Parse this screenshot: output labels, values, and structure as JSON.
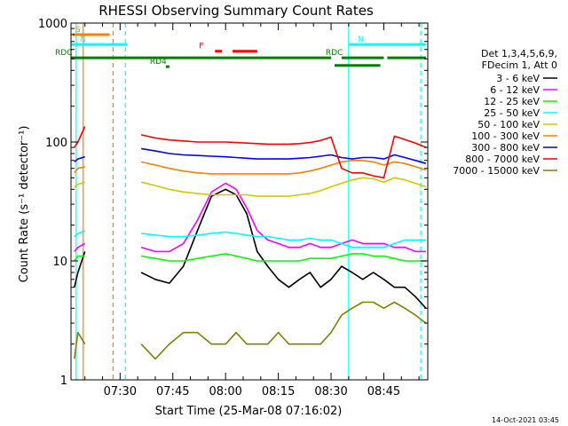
{
  "chart_data": {
    "type": "line",
    "title": "RHESSI Observing Summary Count Rates",
    "xlabel": "Start Time (25-Mar-08 07:16:02)",
    "ylabel": "Count Rate (s⁻¹ detector⁻¹)",
    "y_scale": "log",
    "ylim": [
      1,
      1000
    ],
    "xlim": [
      "07:16:02",
      "08:57:30"
    ],
    "y_ticks": [
      "1",
      "10",
      "100",
      "1000"
    ],
    "x_ticks": [
      "07:30",
      "07:45",
      "08:00",
      "08:15",
      "08:30",
      "08:45"
    ],
    "grid": false,
    "legend_placement": "right",
    "legend_header": [
      "Det 1,3,4,5,6,9,",
      "FDecim 1, Att 0"
    ],
    "footer_date": "14-Oct-2021 03:45",
    "series": [
      {
        "name": "3 - 6 keV",
        "color": "#000000",
        "x": [
          "07:17",
          "07:18",
          "07:20",
          "07:33",
          "07:36",
          "07:40",
          "07:44",
          "07:48",
          "07:52",
          "07:56",
          "08:00",
          "08:03",
          "08:06",
          "08:09",
          "08:12",
          "08:15",
          "08:18",
          "08:21",
          "08:24",
          "08:27",
          "08:30",
          "08:33",
          "08:36",
          "08:39",
          "08:42",
          "08:45",
          "08:48",
          "08:51",
          "08:54",
          "08:57"
        ],
        "values": [
          6,
          8,
          12,
          null,
          8,
          7,
          6.5,
          9,
          18,
          35,
          40,
          36,
          25,
          12,
          9,
          7,
          6,
          7,
          8,
          6,
          7,
          9,
          8,
          7,
          8,
          7,
          6,
          6,
          5,
          4
        ]
      },
      {
        "name": "6 - 12 keV",
        "color": "#ff00ff",
        "x": [
          "07:17",
          "07:18",
          "07:20",
          "07:33",
          "07:36",
          "07:40",
          "07:44",
          "07:48",
          "07:52",
          "07:56",
          "08:00",
          "08:03",
          "08:06",
          "08:09",
          "08:12",
          "08:15",
          "08:18",
          "08:21",
          "08:24",
          "08:27",
          "08:30",
          "08:33",
          "08:36",
          "08:39",
          "08:42",
          "08:45",
          "08:48",
          "08:51",
          "08:54",
          "08:57"
        ],
        "values": [
          12,
          13,
          14,
          null,
          13,
          12,
          12,
          14,
          22,
          38,
          45,
          40,
          28,
          18,
          15,
          14,
          13,
          13,
          14,
          13,
          13,
          14,
          15,
          14,
          14,
          14,
          13,
          13,
          12,
          12
        ]
      },
      {
        "name": "12 - 25 keV",
        "color": "#00ff00",
        "x": [
          "07:17",
          "07:18",
          "07:20",
          "07:33",
          "07:36",
          "07:40",
          "07:44",
          "07:48",
          "07:52",
          "07:56",
          "08:00",
          "08:03",
          "08:06",
          "08:09",
          "08:12",
          "08:15",
          "08:18",
          "08:21",
          "08:24",
          "08:27",
          "08:30",
          "08:33",
          "08:36",
          "08:39",
          "08:42",
          "08:45",
          "08:48",
          "08:51",
          "08:54",
          "08:57"
        ],
        "values": [
          10,
          11,
          11,
          null,
          11,
          10.5,
          10,
          10,
          10.5,
          11,
          11.5,
          11,
          10.5,
          10,
          10,
          10,
          10,
          10,
          10.5,
          10.5,
          10.5,
          11,
          11.5,
          11.5,
          11,
          11,
          10.5,
          10,
          10,
          10
        ]
      },
      {
        "name": "25 - 50 keV",
        "color": "#00ffff",
        "x": [
          "07:17",
          "07:18",
          "07:20",
          "07:33",
          "07:36",
          "07:40",
          "07:44",
          "07:48",
          "07:52",
          "07:56",
          "08:00",
          "08:03",
          "08:06",
          "08:09",
          "08:12",
          "08:15",
          "08:18",
          "08:21",
          "08:24",
          "08:27",
          "08:30",
          "08:33",
          "08:36",
          "08:39",
          "08:42",
          "08:45",
          "08:48",
          "08:51",
          "08:54",
          "08:57"
        ],
        "values": [
          16,
          17,
          18,
          null,
          17,
          16.5,
          16,
          16,
          16.5,
          17,
          17.5,
          17,
          16.5,
          16,
          16,
          15.5,
          15,
          15,
          15.5,
          15,
          15,
          14,
          13,
          13,
          13,
          13,
          14,
          15,
          15,
          15
        ]
      },
      {
        "name": "50 - 100 keV",
        "color": "#d2c800",
        "x": [
          "07:17",
          "07:18",
          "07:20",
          "07:33",
          "07:36",
          "07:40",
          "07:44",
          "07:48",
          "07:52",
          "07:56",
          "08:00",
          "08:03",
          "08:06",
          "08:09",
          "08:12",
          "08:15",
          "08:18",
          "08:21",
          "08:24",
          "08:27",
          "08:30",
          "08:33",
          "08:36",
          "08:39",
          "08:42",
          "08:45",
          "08:48",
          "08:51",
          "08:54",
          "08:57"
        ],
        "values": [
          42,
          44,
          46,
          null,
          46,
          43,
          40,
          38,
          37,
          36,
          36,
          36,
          36,
          35,
          35,
          35,
          35,
          36,
          37,
          39,
          42,
          45,
          48,
          50,
          49,
          46,
          50,
          48,
          45,
          42
        ]
      },
      {
        "name": "100 - 300 keV",
        "color": "#ff8000",
        "x": [
          "07:17",
          "07:18",
          "07:20",
          "07:33",
          "07:36",
          "07:40",
          "07:44",
          "07:48",
          "07:52",
          "07:56",
          "08:00",
          "08:03",
          "08:06",
          "08:09",
          "08:12",
          "08:15",
          "08:18",
          "08:21",
          "08:24",
          "08:27",
          "08:30",
          "08:33",
          "08:36",
          "08:39",
          "08:42",
          "08:45",
          "08:48",
          "08:51",
          "08:54",
          "08:57"
        ],
        "values": [
          55,
          60,
          62,
          null,
          68,
          64,
          60,
          57,
          55,
          54,
          54,
          54,
          54,
          54,
          54,
          54,
          54,
          55,
          57,
          60,
          64,
          68,
          70,
          70,
          68,
          64,
          68,
          66,
          62,
          58
        ]
      },
      {
        "name": "300 - 800 keV",
        "color": "#0000ff",
        "x": [
          "07:17",
          "07:18",
          "07:20",
          "07:33",
          "07:36",
          "07:40",
          "07:44",
          "07:48",
          "07:52",
          "07:56",
          "08:00",
          "08:03",
          "08:06",
          "08:09",
          "08:12",
          "08:15",
          "08:18",
          "08:21",
          "08:24",
          "08:27",
          "08:30",
          "08:33",
          "08:36",
          "08:39",
          "08:42",
          "08:45",
          "08:48",
          "08:51",
          "08:54",
          "08:57"
        ],
        "values": [
          68,
          72,
          75,
          null,
          88,
          84,
          80,
          78,
          77,
          76,
          75,
          74,
          73,
          72,
          72,
          72,
          72,
          73,
          74,
          76,
          78,
          74,
          72,
          74,
          74,
          72,
          78,
          74,
          70,
          66
        ]
      },
      {
        "name": "800 - 7000 keV",
        "color": "#ff0000",
        "x": [
          "07:17",
          "07:18",
          "07:20",
          "07:33",
          "07:36",
          "07:40",
          "07:44",
          "07:48",
          "07:52",
          "07:56",
          "08:00",
          "08:03",
          "08:06",
          "08:09",
          "08:12",
          "08:15",
          "08:18",
          "08:21",
          "08:24",
          "08:27",
          "08:30",
          "08:33",
          "08:36",
          "08:39",
          "08:42",
          "08:45",
          "08:48",
          "08:51",
          "08:54",
          "08:57"
        ],
        "values": [
          90,
          100,
          135,
          null,
          115,
          108,
          104,
          102,
          100,
          100,
          100,
          99,
          98,
          97,
          96,
          96,
          96,
          97,
          99,
          103,
          110,
          60,
          55,
          55,
          52,
          50,
          112,
          105,
          98,
          90
        ]
      },
      {
        "name": "7000 - 15000 keV",
        "color": "#808000",
        "x": [
          "07:17",
          "07:18",
          "07:20",
          "07:33",
          "07:36",
          "07:40",
          "07:44",
          "07:48",
          "07:52",
          "07:56",
          "08:00",
          "08:03",
          "08:06",
          "08:09",
          "08:12",
          "08:15",
          "08:18",
          "08:21",
          "08:24",
          "08:27",
          "08:30",
          "08:33",
          "08:36",
          "08:39",
          "08:42",
          "08:45",
          "08:48",
          "08:51",
          "08:54",
          "08:57"
        ],
        "values": [
          1.5,
          2.5,
          2,
          null,
          2,
          1.5,
          2,
          2.5,
          2.5,
          2,
          2,
          2.5,
          2,
          2,
          2,
          2.5,
          2,
          2,
          2,
          2,
          2.5,
          3.5,
          4,
          4.5,
          4.5,
          4,
          4.5,
          4,
          3.5,
          3
        ]
      }
    ],
    "flags": [
      {
        "label": "S",
        "color": "#ff8000",
        "from": "07:16:30",
        "to": "07:27:00",
        "level": 800
      },
      {
        "label": "N",
        "color": "#00ffff",
        "from": "07:16:02",
        "to": "07:32:00",
        "level": 660
      },
      {
        "label": "N",
        "color": "#00ffff",
        "from": "08:35:00",
        "to": "08:57:00",
        "level": 660
      },
      {
        "label": "F",
        "color": "#ff0000",
        "from": "07:57:00",
        "to": "07:59:00",
        "level": 580
      },
      {
        "label": "",
        "color": "#ff0000",
        "from": "08:02:00",
        "to": "08:09:00",
        "level": 580
      },
      {
        "label": "RDC",
        "color": "#007f00",
        "from": "07:16:02",
        "to": "08:30:00",
        "level": 510
      },
      {
        "label": "RDC",
        "color": "#007f00",
        "from": "08:33:00",
        "to": "08:45:00",
        "level": 510
      },
      {
        "label": "",
        "color": "#007f00",
        "from": "08:46:00",
        "to": "08:57:00",
        "level": 510
      },
      {
        "label": "",
        "color": "#007f00",
        "from": "08:31:00",
        "to": "08:44:00",
        "level": 440
      },
      {
        "label": "RD4",
        "color": "#007f00",
        "from": "07:43:00",
        "to": "07:44:00",
        "level": 430
      }
    ],
    "vertical_markers": [
      {
        "time": "07:17:30",
        "color": "#00ffff",
        "style": "solid"
      },
      {
        "time": "07:19:30",
        "color": "#ff8000",
        "style": "solid"
      },
      {
        "time": "07:28:00",
        "color": "#ff8000",
        "style": "dashed"
      },
      {
        "time": "07:31:30",
        "color": "#00ffff",
        "style": "dashed"
      },
      {
        "time": "08:35:00",
        "color": "#00ffff",
        "style": "solid"
      },
      {
        "time": "08:55:30",
        "color": "#00ffff",
        "style": "dashed"
      }
    ]
  }
}
